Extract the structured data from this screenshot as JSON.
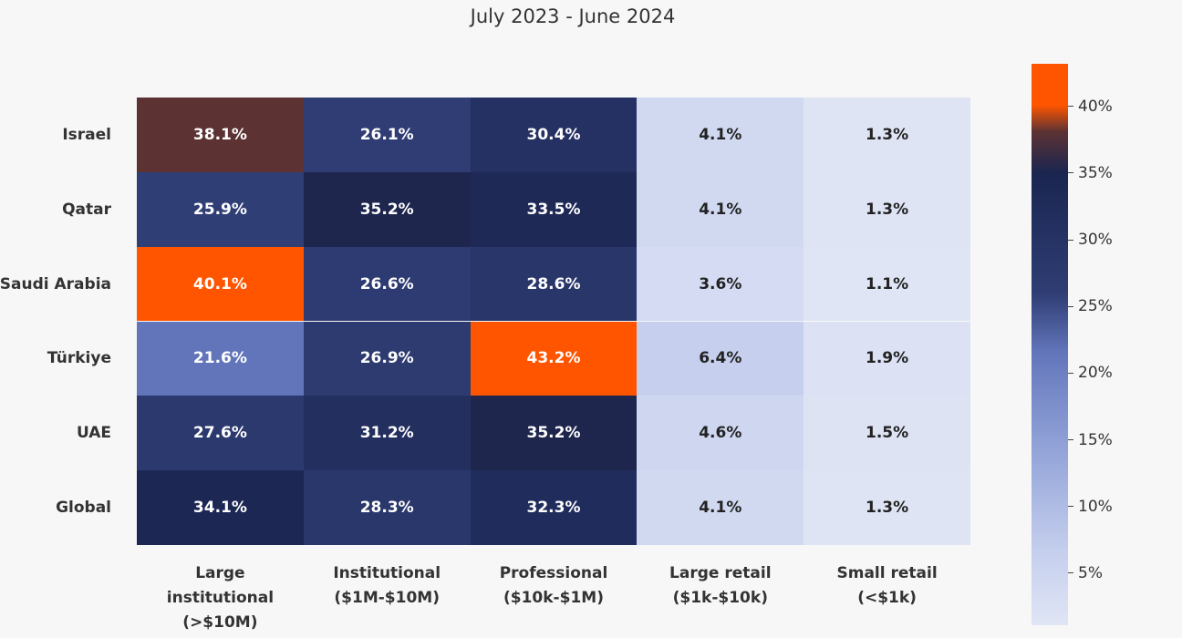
{
  "chart_data": {
    "type": "heatmap",
    "title": "July 2023 - June 2024",
    "x_categories": [
      "Large institutional (>$10M)",
      "Institutional ($1M-$10M)",
      "Professional ($10k-$1M)",
      "Large retail ($1k-$10k)",
      "Small retail (<$1k)"
    ],
    "y_categories": [
      "Israel",
      "Qatar",
      "Saudi Arabia",
      "Türkiye",
      "UAE",
      "Global"
    ],
    "values": [
      [
        38.1,
        26.1,
        30.4,
        4.1,
        1.3
      ],
      [
        25.9,
        35.2,
        33.5,
        4.1,
        1.3
      ],
      [
        40.1,
        26.6,
        28.6,
        3.6,
        1.1
      ],
      [
        21.6,
        26.9,
        43.2,
        6.4,
        1.9
      ],
      [
        27.6,
        31.2,
        35.2,
        4.6,
        1.5
      ],
      [
        34.1,
        28.3,
        32.3,
        4.1,
        1.3
      ]
    ],
    "value_labels": [
      [
        "38.1%",
        "26.1%",
        "30.4%",
        "4.1%",
        "1.3%"
      ],
      [
        "25.9%",
        "35.2%",
        "33.5%",
        "4.1%",
        "1.3%"
      ],
      [
        "40.1%",
        "26.6%",
        "28.6%",
        "3.6%",
        "1.1%"
      ],
      [
        "21.6%",
        "26.9%",
        "43.2%",
        "6.4%",
        "1.9%"
      ],
      [
        "27.6%",
        "31.2%",
        "35.2%",
        "4.6%",
        "1.5%"
      ],
      [
        "34.1%",
        "28.3%",
        "32.3%",
        "4.1%",
        "1.3%"
      ]
    ],
    "zlim": [
      1.1,
      43.2
    ],
    "zticks": [
      {
        "value": 5,
        "label": "5%"
      },
      {
        "value": 10,
        "label": "10%"
      },
      {
        "value": 15,
        "label": "15%"
      },
      {
        "value": 20,
        "label": "20%"
      },
      {
        "value": 25,
        "label": "25%"
      },
      {
        "value": 30,
        "label": "30%"
      },
      {
        "value": 35,
        "label": "35%"
      },
      {
        "value": 40,
        "label": "40%"
      }
    ],
    "colorscale": [
      [
        1.1,
        "#e0e5f5"
      ],
      [
        6.4,
        "#c6d0ee"
      ],
      [
        15,
        "#8e9fd6"
      ],
      [
        21.6,
        "#6275ba"
      ],
      [
        26,
        "#2f3d74"
      ],
      [
        35,
        "#1a2550"
      ],
      [
        38.1,
        "#5c3233"
      ],
      [
        40.1,
        "#ff5500"
      ],
      [
        43.2,
        "#ff5500"
      ]
    ]
  }
}
